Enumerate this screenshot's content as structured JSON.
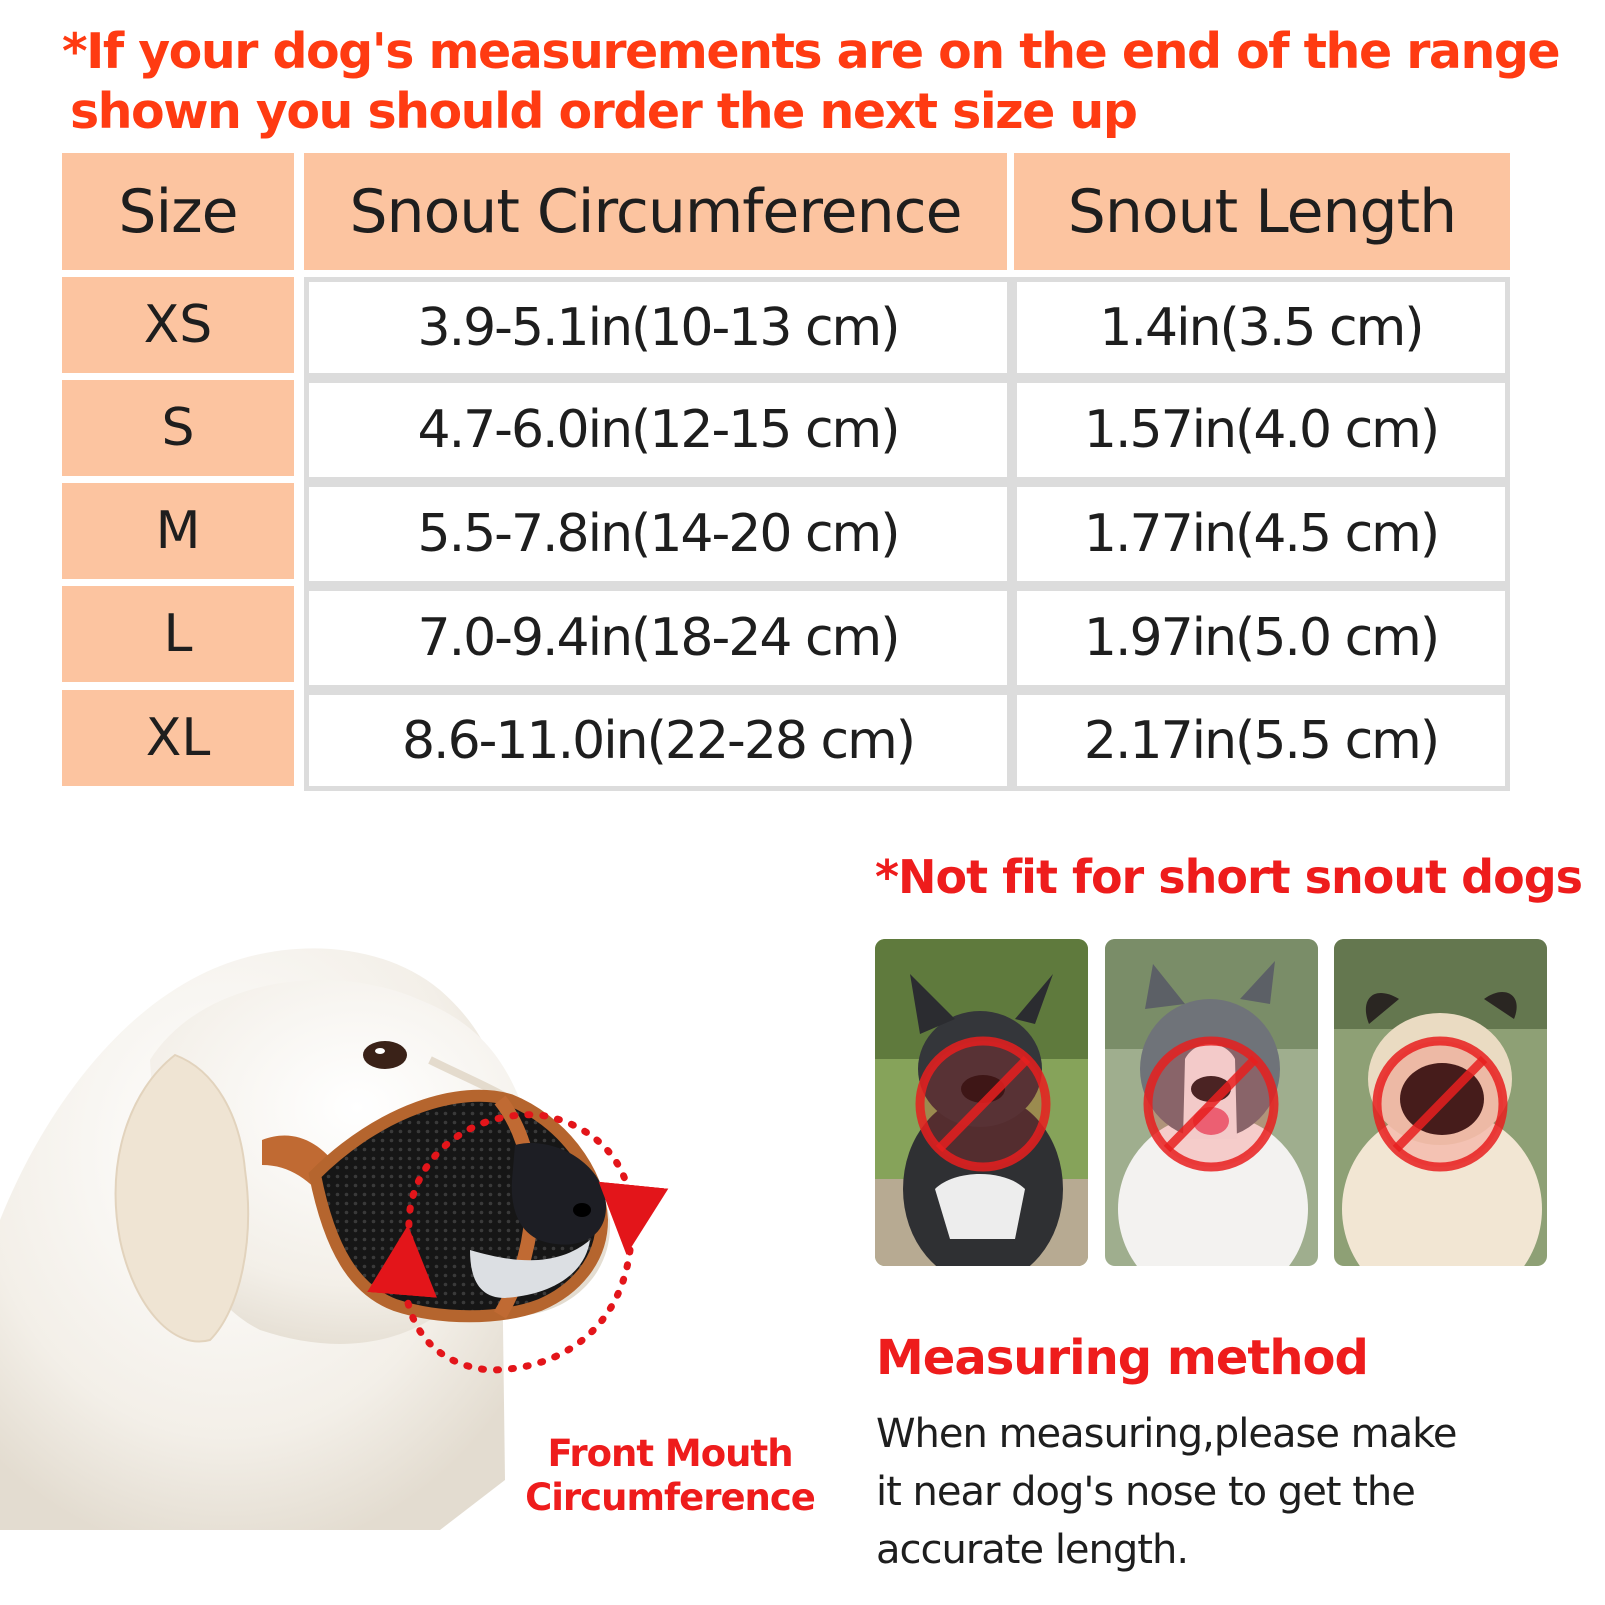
{
  "warning": {
    "line1": "*If your dog's measurements are on the end of the range",
    "line2": "shown you should order the next size up"
  },
  "size_table": {
    "headers": [
      "Size",
      "Snout Circumference",
      "Snout Length"
    ],
    "rows": [
      {
        "size": "XS",
        "circumference": "3.9-5.1in(10-13 cm)",
        "length": "1.4in(3.5 cm)"
      },
      {
        "size": "S",
        "circumference": "4.7-6.0in(12-15 cm)",
        "length": "1.57in(4.0 cm)"
      },
      {
        "size": "M",
        "circumference": "5.5-7.8in(14-20 cm)",
        "length": "1.77in(4.5 cm)"
      },
      {
        "size": "L",
        "circumference": "7.0-9.4in(18-24 cm)",
        "length": "1.97in(5.0 cm)"
      },
      {
        "size": "XL",
        "circumference": "8.6-11.0in(22-28 cm)",
        "length": "2.17in(5.5 cm)"
      }
    ]
  },
  "short_snout": {
    "title": "*Not fit for short snout dogs",
    "photos": [
      {
        "name": "french-bulldog",
        "icon": "prohibited-icon"
      },
      {
        "name": "pitbull",
        "icon": "prohibited-icon"
      },
      {
        "name": "pug",
        "icon": "prohibited-icon"
      }
    ]
  },
  "illustration": {
    "label_line1": "Front Mouth",
    "label_line2": "Circumference"
  },
  "measuring": {
    "title": "Measuring method",
    "text_line1": "When measuring,please make",
    "text_line2": "it near dog's nose to get the",
    "text_line3": "accurate length."
  },
  "colors": {
    "warning_red": "#ff3b12",
    "accent_red": "#ee1c1c",
    "header_peach": "#fcc4a0",
    "border_gray": "#dcdcdc"
  }
}
